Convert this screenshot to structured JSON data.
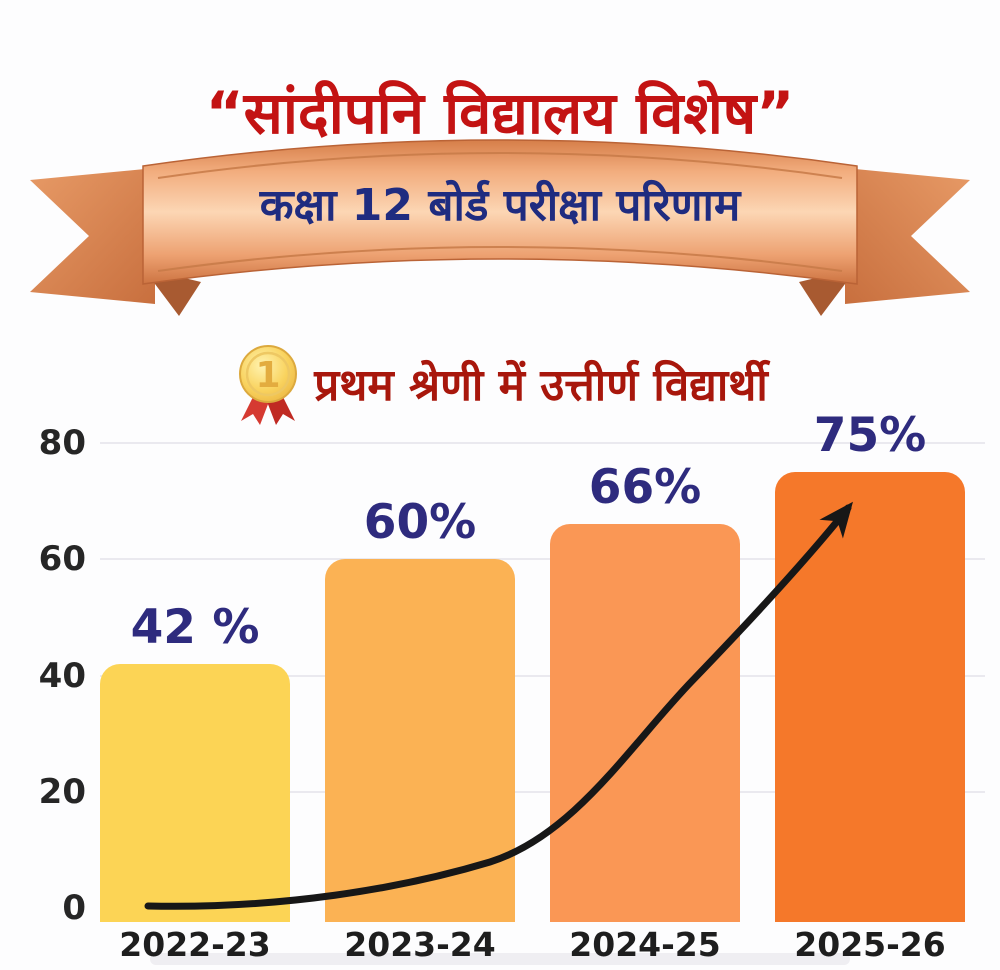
{
  "header": {
    "title": "“सांदीपनि विद्यालय विशेष”"
  },
  "banner": {
    "text": "कक्षा 12 बोर्ड परीक्षा परिणाम"
  },
  "subtitle": {
    "icon": "gold-medal-first-place",
    "text": "प्रथम श्रेणी में उत्तीर्ण विद्यार्थी"
  },
  "chart_data": {
    "type": "bar",
    "title": "प्रथम श्रेणी में उत्तीर्ण विद्यार्थी",
    "categories": [
      "2022-23",
      "2023-24",
      "2024-25",
      "2025-26"
    ],
    "values": [
      42,
      60,
      66,
      75
    ],
    "value_labels": [
      "42 %",
      "60%",
      "66%",
      "75%"
    ],
    "bar_colors": [
      "#fcd455",
      "#fbb254",
      "#fa9755",
      "#f5782a"
    ],
    "xlabel": "",
    "ylabel": "",
    "ylim": [
      0,
      80
    ],
    "yticks": [
      0,
      20,
      40,
      60,
      80
    ],
    "grid": true,
    "legend": "none",
    "annotation": "black-upward-trend-arrow"
  },
  "colors": {
    "title_red": "#c31313",
    "subtitle_red": "#a8170c",
    "banner_navy": "#1f2c80",
    "value_label_navy": "#2e2b7e",
    "ribbon_copper": "#ef9f6e",
    "arrow_black": "#171717",
    "gridline": "#eae9ef"
  }
}
